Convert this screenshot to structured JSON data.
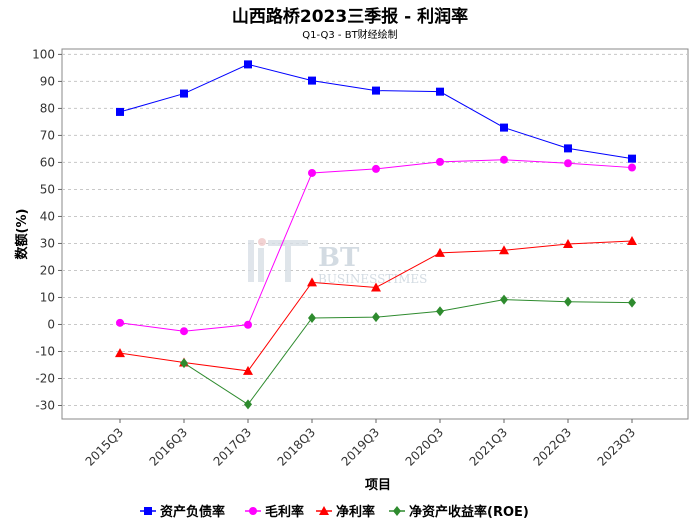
{
  "chart_data": {
    "type": "line",
    "title": "山西路桥2023三季报 - 利润率",
    "subtitle": "Q1-Q3 - BT财经绘制",
    "xlabel": "项目",
    "ylabel": "数额(%)",
    "ylim": [
      -35,
      102
    ],
    "yticks": [
      -30,
      -20,
      -10,
      0,
      10,
      20,
      30,
      40,
      50,
      60,
      70,
      80,
      90,
      100
    ],
    "grid": true,
    "legend_position": "bottom",
    "categories": [
      "2015Q3",
      "2016Q3",
      "2017Q3",
      "2018Q3",
      "2019Q3",
      "2020Q3",
      "2021Q3",
      "2022Q3",
      "2023Q3"
    ],
    "series": [
      {
        "name": "资产负债率",
        "color": "#0000ff",
        "marker": "square",
        "values": [
          78.7,
          85.5,
          96.3,
          90.3,
          86.6,
          86.2,
          72.9,
          65.2,
          61.4
        ]
      },
      {
        "name": "毛利率",
        "color": "#ff00ff",
        "marker": "circle",
        "values": [
          0.6,
          -2.5,
          -0.1,
          56.1,
          57.6,
          60.2,
          61.0,
          59.7,
          58.1
        ]
      },
      {
        "name": "净利率",
        "color": "#ff0000",
        "marker": "triangle",
        "values": [
          -10.6,
          -14.1,
          -17.2,
          15.6,
          13.7,
          26.5,
          27.5,
          29.8,
          30.9
        ]
      },
      {
        "name": "净资产收益率(ROE)",
        "color": "#2e8b2e",
        "marker": "diamond",
        "values": [
          null,
          -14.3,
          -29.6,
          2.4,
          2.7,
          4.9,
          9.2,
          8.4,
          8.1
        ]
      }
    ]
  }
}
